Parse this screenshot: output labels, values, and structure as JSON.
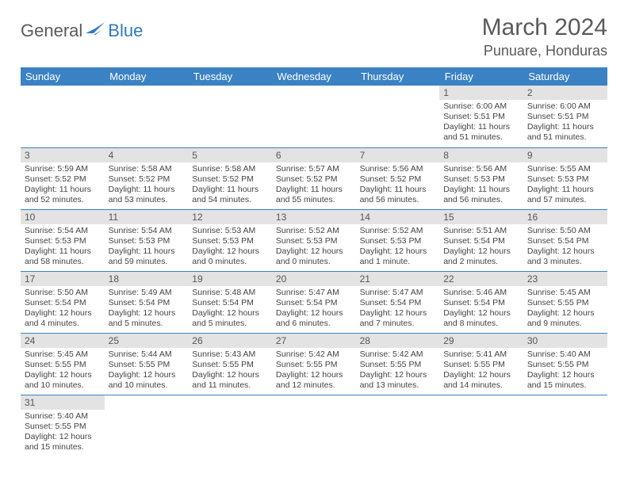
{
  "logo": {
    "text1": "General",
    "text2": "Blue"
  },
  "title": "March 2024",
  "location": "Punuare, Honduras",
  "colors": {
    "header_bg": "#3b82c4",
    "header_text": "#ffffff",
    "daynum_bg": "#e3e3e3",
    "border": "#3b82c4",
    "logo_blue": "#2f7ac0",
    "title_gray": "#5a5a5a"
  },
  "weekdays": [
    "Sunday",
    "Monday",
    "Tuesday",
    "Wednesday",
    "Thursday",
    "Friday",
    "Saturday"
  ],
  "weeks": [
    [
      {
        "n": "",
        "sr": "",
        "ss": "",
        "dl": ""
      },
      {
        "n": "",
        "sr": "",
        "ss": "",
        "dl": ""
      },
      {
        "n": "",
        "sr": "",
        "ss": "",
        "dl": ""
      },
      {
        "n": "",
        "sr": "",
        "ss": "",
        "dl": ""
      },
      {
        "n": "",
        "sr": "",
        "ss": "",
        "dl": ""
      },
      {
        "n": "1",
        "sr": "Sunrise: 6:00 AM",
        "ss": "Sunset: 5:51 PM",
        "dl": "Daylight: 11 hours and 51 minutes."
      },
      {
        "n": "2",
        "sr": "Sunrise: 6:00 AM",
        "ss": "Sunset: 5:51 PM",
        "dl": "Daylight: 11 hours and 51 minutes."
      }
    ],
    [
      {
        "n": "3",
        "sr": "Sunrise: 5:59 AM",
        "ss": "Sunset: 5:52 PM",
        "dl": "Daylight: 11 hours and 52 minutes."
      },
      {
        "n": "4",
        "sr": "Sunrise: 5:58 AM",
        "ss": "Sunset: 5:52 PM",
        "dl": "Daylight: 11 hours and 53 minutes."
      },
      {
        "n": "5",
        "sr": "Sunrise: 5:58 AM",
        "ss": "Sunset: 5:52 PM",
        "dl": "Daylight: 11 hours and 54 minutes."
      },
      {
        "n": "6",
        "sr": "Sunrise: 5:57 AM",
        "ss": "Sunset: 5:52 PM",
        "dl": "Daylight: 11 hours and 55 minutes."
      },
      {
        "n": "7",
        "sr": "Sunrise: 5:56 AM",
        "ss": "Sunset: 5:52 PM",
        "dl": "Daylight: 11 hours and 56 minutes."
      },
      {
        "n": "8",
        "sr": "Sunrise: 5:56 AM",
        "ss": "Sunset: 5:53 PM",
        "dl": "Daylight: 11 hours and 56 minutes."
      },
      {
        "n": "9",
        "sr": "Sunrise: 5:55 AM",
        "ss": "Sunset: 5:53 PM",
        "dl": "Daylight: 11 hours and 57 minutes."
      }
    ],
    [
      {
        "n": "10",
        "sr": "Sunrise: 5:54 AM",
        "ss": "Sunset: 5:53 PM",
        "dl": "Daylight: 11 hours and 58 minutes."
      },
      {
        "n": "11",
        "sr": "Sunrise: 5:54 AM",
        "ss": "Sunset: 5:53 PM",
        "dl": "Daylight: 11 hours and 59 minutes."
      },
      {
        "n": "12",
        "sr": "Sunrise: 5:53 AM",
        "ss": "Sunset: 5:53 PM",
        "dl": "Daylight: 12 hours and 0 minutes."
      },
      {
        "n": "13",
        "sr": "Sunrise: 5:52 AM",
        "ss": "Sunset: 5:53 PM",
        "dl": "Daylight: 12 hours and 0 minutes."
      },
      {
        "n": "14",
        "sr": "Sunrise: 5:52 AM",
        "ss": "Sunset: 5:53 PM",
        "dl": "Daylight: 12 hours and 1 minute."
      },
      {
        "n": "15",
        "sr": "Sunrise: 5:51 AM",
        "ss": "Sunset: 5:54 PM",
        "dl": "Daylight: 12 hours and 2 minutes."
      },
      {
        "n": "16",
        "sr": "Sunrise: 5:50 AM",
        "ss": "Sunset: 5:54 PM",
        "dl": "Daylight: 12 hours and 3 minutes."
      }
    ],
    [
      {
        "n": "17",
        "sr": "Sunrise: 5:50 AM",
        "ss": "Sunset: 5:54 PM",
        "dl": "Daylight: 12 hours and 4 minutes."
      },
      {
        "n": "18",
        "sr": "Sunrise: 5:49 AM",
        "ss": "Sunset: 5:54 PM",
        "dl": "Daylight: 12 hours and 5 minutes."
      },
      {
        "n": "19",
        "sr": "Sunrise: 5:48 AM",
        "ss": "Sunset: 5:54 PM",
        "dl": "Daylight: 12 hours and 5 minutes."
      },
      {
        "n": "20",
        "sr": "Sunrise: 5:47 AM",
        "ss": "Sunset: 5:54 PM",
        "dl": "Daylight: 12 hours and 6 minutes."
      },
      {
        "n": "21",
        "sr": "Sunrise: 5:47 AM",
        "ss": "Sunset: 5:54 PM",
        "dl": "Daylight: 12 hours and 7 minutes."
      },
      {
        "n": "22",
        "sr": "Sunrise: 5:46 AM",
        "ss": "Sunset: 5:54 PM",
        "dl": "Daylight: 12 hours and 8 minutes."
      },
      {
        "n": "23",
        "sr": "Sunrise: 5:45 AM",
        "ss": "Sunset: 5:55 PM",
        "dl": "Daylight: 12 hours and 9 minutes."
      }
    ],
    [
      {
        "n": "24",
        "sr": "Sunrise: 5:45 AM",
        "ss": "Sunset: 5:55 PM",
        "dl": "Daylight: 12 hours and 10 minutes."
      },
      {
        "n": "25",
        "sr": "Sunrise: 5:44 AM",
        "ss": "Sunset: 5:55 PM",
        "dl": "Daylight: 12 hours and 10 minutes."
      },
      {
        "n": "26",
        "sr": "Sunrise: 5:43 AM",
        "ss": "Sunset: 5:55 PM",
        "dl": "Daylight: 12 hours and 11 minutes."
      },
      {
        "n": "27",
        "sr": "Sunrise: 5:42 AM",
        "ss": "Sunset: 5:55 PM",
        "dl": "Daylight: 12 hours and 12 minutes."
      },
      {
        "n": "28",
        "sr": "Sunrise: 5:42 AM",
        "ss": "Sunset: 5:55 PM",
        "dl": "Daylight: 12 hours and 13 minutes."
      },
      {
        "n": "29",
        "sr": "Sunrise: 5:41 AM",
        "ss": "Sunset: 5:55 PM",
        "dl": "Daylight: 12 hours and 14 minutes."
      },
      {
        "n": "30",
        "sr": "Sunrise: 5:40 AM",
        "ss": "Sunset: 5:55 PM",
        "dl": "Daylight: 12 hours and 15 minutes."
      }
    ],
    [
      {
        "n": "31",
        "sr": "Sunrise: 5:40 AM",
        "ss": "Sunset: 5:55 PM",
        "dl": "Daylight: 12 hours and 15 minutes."
      },
      {
        "n": "",
        "sr": "",
        "ss": "",
        "dl": ""
      },
      {
        "n": "",
        "sr": "",
        "ss": "",
        "dl": ""
      },
      {
        "n": "",
        "sr": "",
        "ss": "",
        "dl": ""
      },
      {
        "n": "",
        "sr": "",
        "ss": "",
        "dl": ""
      },
      {
        "n": "",
        "sr": "",
        "ss": "",
        "dl": ""
      },
      {
        "n": "",
        "sr": "",
        "ss": "",
        "dl": ""
      }
    ]
  ]
}
